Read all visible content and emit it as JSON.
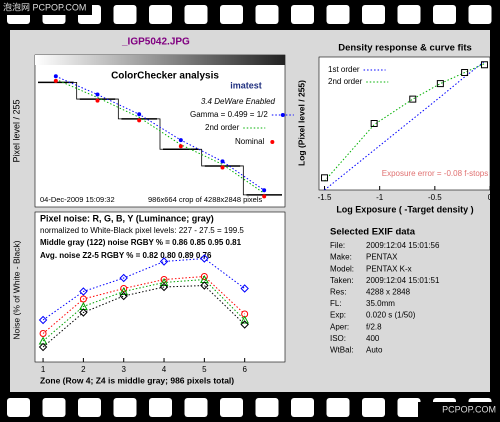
{
  "watermark_top": "泡泡网 PCPOP.COM",
  "watermark_bottom": "PCPOP.COM",
  "file_title": "_IGP5042.JPG",
  "chart_data": [
    {
      "type": "step",
      "title": "ColorChecker analysis",
      "logo": "imatest",
      "version_note": "3.4  DeWare Enabled",
      "ylabel": "Pixel level / 255",
      "date": "04-Dec-2009 15:09:32",
      "crop_note": "986x664 crop of 4288x2848 pixels",
      "categories": [
        null,
        null,
        null,
        null,
        null,
        null
      ],
      "values": [
        0.82,
        0.71,
        0.58,
        0.38,
        0.27,
        0.08
      ],
      "color": "#000000",
      "ylim": [
        0,
        1
      ],
      "series": [
        {
          "name": "Gamma = 0.499 = 1/2",
          "color": "#0000ff",
          "values": [
            0.86,
            0.74,
            0.61,
            0.44,
            0.3,
            0.11
          ],
          "line": "dotted",
          "marker": "dot"
        },
        {
          "name": "2nd order",
          "color": "#00b000",
          "values": [
            0.84,
            0.72,
            0.59,
            0.41,
            0.28,
            0.09
          ],
          "line": "dotted"
        },
        {
          "name": "Nominal",
          "color": "#ff0000",
          "values": [
            0.83,
            0.7,
            0.57,
            0.4,
            0.26,
            0.07
          ],
          "marker": "dot"
        }
      ]
    },
    {
      "type": "line",
      "title": "Pixel noise: R, G, B, Y (Luminance; gray)",
      "notes": [
        "normalized to White-Black pixel levels: 227 - 27.5 = 199.5",
        "Middle gray (122) noise RGBY % = 0.86  0.85  0.95  0.81",
        "Avg. noise Z2-5 RGBY % = 0.82  0.80  0.89  0.76"
      ],
      "ylabel": "Noise (% of White - Black)",
      "xlabel": "Zone  (Row 4; Z4 is middle gray; 986 pixels total)",
      "x": [
        1,
        2,
        3,
        4,
        5,
        6
      ],
      "xlim": [
        0.8,
        7
      ],
      "xticks": [
        1,
        2,
        3,
        4,
        5,
        6
      ],
      "ylim": [
        0.3,
        1.3
      ],
      "series": [
        {
          "color": "#0000ff",
          "values": [
            0.58,
            0.77,
            0.86,
            0.97,
            0.99,
            0.79
          ],
          "line": "dotted",
          "marker": "diamond"
        },
        {
          "color": "#ff0000",
          "values": [
            0.49,
            0.72,
            0.79,
            0.85,
            0.87,
            0.62
          ],
          "line": "dotted",
          "marker": "circle"
        },
        {
          "color": "#00a000",
          "values": [
            0.44,
            0.67,
            0.77,
            0.83,
            0.85,
            0.58
          ],
          "line": "dotted",
          "marker": "triangle"
        },
        {
          "color": "#000000",
          "values": [
            0.4,
            0.63,
            0.74,
            0.8,
            0.81,
            0.55
          ],
          "line": "dotted",
          "marker": "diamond"
        }
      ]
    },
    {
      "type": "line",
      "title": "Density response & curve fits",
      "ylabel": "Log (Pixel level / 255)",
      "xlabel": "Log Exposure ( -Target density )",
      "annotation": "Exposure error = -0.08 f-stops",
      "x": [
        -1.5,
        -1.05,
        -0.7,
        -0.45,
        -0.23,
        -0.05
      ],
      "xlim": [
        -1.55,
        0
      ],
      "xticks": [
        -1.5,
        -1,
        -0.5,
        0
      ],
      "ylim": [
        -1.2,
        0
      ],
      "values": [
        -1.09,
        -0.6,
        -0.38,
        -0.24,
        -0.14,
        -0.07
      ],
      "color": "#000000",
      "marker": "square",
      "series": [
        {
          "name": "1st order",
          "color": "#0000ff",
          "values": [
            -1.2,
            -0.84,
            -0.56,
            -0.36,
            -0.18,
            -0.04
          ],
          "line": "dotted"
        },
        {
          "name": "2nd order",
          "color": "#00b000",
          "values": [
            -1.12,
            -0.61,
            -0.38,
            -0.24,
            -0.14,
            -0.06
          ],
          "line": "dotted"
        }
      ]
    }
  ],
  "exif": {
    "title": "Selected EXIF data",
    "rows": [
      [
        "File:",
        "2009:12:04 15:01:56"
      ],
      [
        "Make:",
        "PENTAX"
      ],
      [
        "Model:",
        "PENTAX K-x"
      ],
      [
        "Taken:",
        "2009:12:04 15:01:51"
      ],
      [
        "Res:",
        "4288 x 2848"
      ],
      [
        "FL:",
        "35.0mm"
      ],
      [
        "Exp:",
        "0.020 s  (1/50)"
      ],
      [
        "Aper:",
        "f/2.8"
      ],
      [
        "ISO:",
        "400"
      ],
      [
        "WtBal:",
        "Auto"
      ]
    ]
  }
}
